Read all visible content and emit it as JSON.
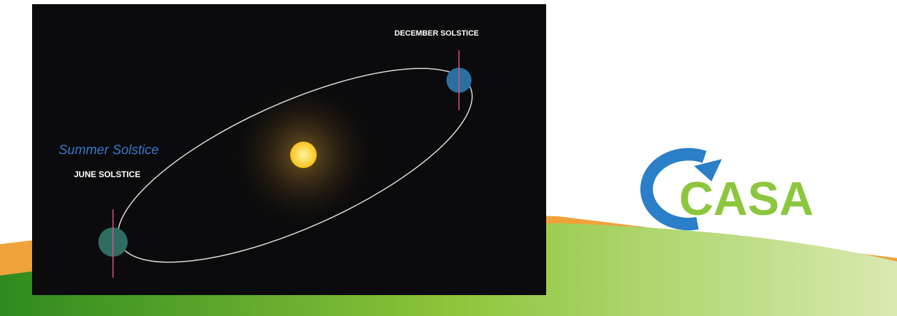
{
  "image": {
    "labels": {
      "december": "DECEMBER SOLSTICE",
      "summer": "Summer Solstice",
      "june": "JUNE SOLSTICE"
    }
  },
  "logo": {
    "text": "CASA"
  }
}
